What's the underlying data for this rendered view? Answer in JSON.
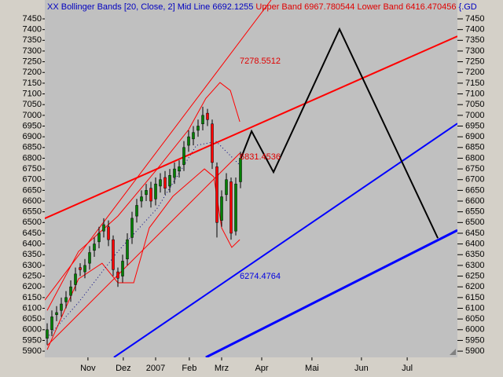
{
  "chart_data": {
    "type": "candlestick",
    "title": [
      "XX Bollinger Bands [20, Close, 2] Mid Line 6692.1255",
      "Upper Band 6967.780544 Lower Band 6416.470456",
      "{.GD"
    ],
    "title_colors": [
      "#0000c0",
      "#e00000",
      "#0000c0"
    ],
    "xlim": [
      0,
      175
    ],
    "ylim": [
      5871,
      7538
    ],
    "xticks": [
      {
        "value": 18.3,
        "label": "Nov"
      },
      {
        "value": 33.3,
        "label": "Dez"
      },
      {
        "value": 47,
        "label": "2007"
      },
      {
        "value": 61.3,
        "label": "Feb"
      },
      {
        "value": 75,
        "label": "Mrz"
      },
      {
        "value": 92,
        "label": "Apr"
      },
      {
        "value": 113.3,
        "label": "Mai"
      },
      {
        "value": 134.3,
        "label": "Jun"
      },
      {
        "value": 153.7,
        "label": "Jul"
      }
    ],
    "yticks": [
      5900,
      5950,
      6000,
      6050,
      6100,
      6150,
      6200,
      6250,
      6300,
      6350,
      6400,
      6450,
      6500,
      6550,
      6600,
      6650,
      6700,
      6750,
      6800,
      6850,
      6900,
      6950,
      7000,
      7050,
      7100,
      7150,
      7200,
      7250,
      7300,
      7350,
      7400,
      7450
    ],
    "up_color": "#008000",
    "down_color": "#ff0000",
    "candles": {
      "x": [
        1,
        3,
        5,
        7,
        9,
        11,
        13,
        15,
        17,
        19,
        21,
        23,
        25,
        27,
        29,
        31,
        33,
        35,
        37,
        39,
        41,
        43,
        45,
        47,
        49,
        51,
        53,
        55,
        57,
        59,
        61,
        63,
        65,
        67,
        69,
        71,
        73,
        75,
        77,
        79,
        81,
        83
      ],
      "open": [
        5960,
        6000,
        6070,
        6090,
        6130,
        6160,
        6210,
        6290,
        6270,
        6310,
        6370,
        6410,
        6460,
        6480,
        6420,
        6270,
        6250,
        6330,
        6430,
        6530,
        6600,
        6630,
        6660,
        6610,
        6670,
        6710,
        6670,
        6710,
        6740,
        6770,
        6860,
        6890,
        6930,
        6960,
        7010,
        6960,
        6760,
        6510,
        6630,
        6690,
        6460,
        6690
      ],
      "high": [
        6030,
        6090,
        6110,
        6150,
        6180,
        6230,
        6290,
        6310,
        6330,
        6390,
        6430,
        6480,
        6520,
        6510,
        6440,
        6290,
        6350,
        6450,
        6550,
        6610,
        6650,
        6680,
        6690,
        6710,
        6730,
        6740,
        6750,
        6780,
        6790,
        6880,
        6930,
        6950,
        6980,
        7040,
        7030,
        6980,
        6780,
        6650,
        6730,
        6710,
        6710,
        6830
      ],
      "low": [
        5930,
        5970,
        6040,
        6060,
        6100,
        6130,
        6180,
        6250,
        6240,
        6280,
        6340,
        6380,
        6430,
        6390,
        6250,
        6200,
        6220,
        6300,
        6400,
        6500,
        6570,
        6600,
        6570,
        6580,
        6640,
        6630,
        6640,
        6680,
        6710,
        6740,
        6830,
        6860,
        6900,
        6930,
        6950,
        6750,
        6430,
        6480,
        6600,
        6420,
        6440,
        6660
      ],
      "close": [
        6000,
        6060,
        6080,
        6120,
        6150,
        6200,
        6260,
        6280,
        6300,
        6360,
        6400,
        6450,
        6490,
        6420,
        6280,
        6240,
        6320,
        6420,
        6520,
        6580,
        6620,
        6650,
        6600,
        6680,
        6700,
        6660,
        6720,
        6750,
        6760,
        6850,
        6900,
        6920,
        6950,
        7000,
        6980,
        6780,
        6500,
        6620,
        6700,
        6450,
        6680,
        6800
      ]
    },
    "lines": [
      {
        "color": "#ff0000",
        "width": 1,
        "x": [
          1,
          14.3,
          31,
          47.7,
          61,
          68.3,
          74.3,
          78.7,
          82.7
        ],
        "y": [
          6090,
          6365,
          6530,
          6750,
          6933,
          7079,
          7153,
          7116,
          6970
        ]
      },
      {
        "color": "#ff0000",
        "width": 1,
        "x": [
          1,
          14.3,
          24.3,
          31,
          37.7,
          44.3,
          54.3,
          67.7,
          71.7,
          75,
          79.3,
          82.7
        ],
        "y": [
          5907,
          6237,
          6310,
          6219,
          6219,
          6475,
          6622,
          6750,
          6713,
          6475,
          6384,
          6420
        ]
      },
      {
        "color": "#000080",
        "width": 1,
        "dash": true,
        "x": [
          1,
          14.3,
          31,
          47.7,
          64.3,
          72.7,
          82.7
        ],
        "y": [
          5962,
          6127,
          6365,
          6567,
          6860,
          6878,
          6768
        ]
      },
      {
        "color": "#ff0000",
        "width": 1,
        "x": [
          0,
          96
        ],
        "y": [
          6138,
          7538
        ]
      },
      {
        "color": "#ff0000",
        "width": 1,
        "x": [
          1,
          82.7
        ],
        "y": [
          5926,
          6823
        ]
      },
      {
        "color": "#ff0000",
        "width": 2,
        "x": [
          0,
          175
        ],
        "y": [
          6519,
          7369
        ]
      },
      {
        "color": "#0000ff",
        "width": 2,
        "x": [
          29.3,
          175
        ],
        "y": [
          5871,
          6962
        ]
      },
      {
        "color": "#0000ff",
        "width": 3,
        "x": [
          68.3,
          175
        ],
        "y": [
          5871,
          6464
        ]
      },
      {
        "color": "#000000",
        "width": 2,
        "x": [
          82.7,
          87.7,
          97,
          125,
          166.7
        ],
        "y": [
          6786,
          6926,
          6735,
          7402,
          6427
        ]
      }
    ],
    "annotations": [
      "7278.5512",
      "6831.4536",
      "6274.4764"
    ]
  }
}
